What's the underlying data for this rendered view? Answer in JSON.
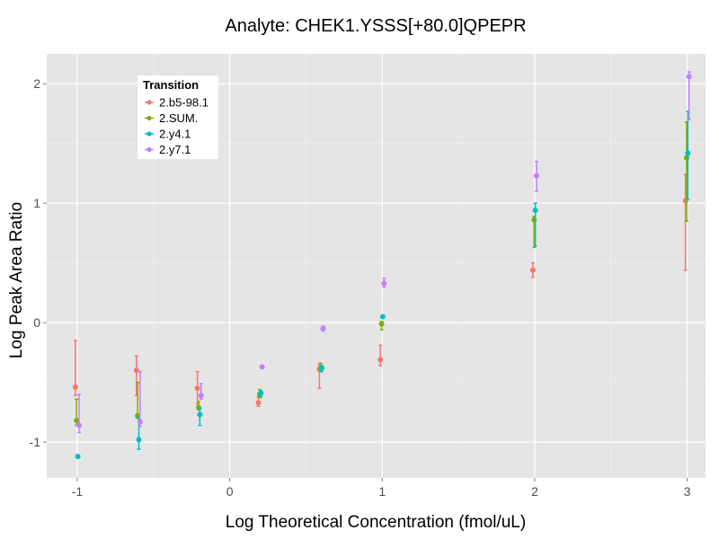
{
  "chart_data": {
    "type": "scatter",
    "title": "Analyte: CHEK1.YSSS[+80.0]QPEPR",
    "xlabel": "Log Theoretical Concentration (fmol/uL)",
    "ylabel": "Log Peak Area Ratio",
    "xlim": [
      -1.2,
      3.12
    ],
    "ylim": [
      -1.3,
      2.25
    ],
    "x_ticks": [
      -1,
      0,
      1,
      2,
      3
    ],
    "y_ticks": [
      -1,
      0,
      1,
      2
    ],
    "x_tick_labels": [
      "-1",
      "0",
      "1",
      "2",
      "3"
    ],
    "y_tick_labels": [
      "-1",
      "0",
      "1",
      "2"
    ],
    "grid": true,
    "legend": {
      "title": "Transition",
      "position": "top-left"
    },
    "series": [
      {
        "name": "2.b5-98.1",
        "color": "#F8766D",
        "offset": -0.012,
        "points": [
          {
            "x": -1.0,
            "y": -0.54,
            "lo": -0.61,
            "hi": -0.15
          },
          {
            "x": -0.6,
            "y": -0.4,
            "lo": -0.61,
            "hi": -0.28
          },
          {
            "x": -0.2,
            "y": -0.55,
            "lo": -0.68,
            "hi": -0.41
          },
          {
            "x": 0.2,
            "y": -0.67,
            "lo": -0.7,
            "hi": -0.62
          },
          {
            "x": 0.6,
            "y": -0.39,
            "lo": -0.55,
            "hi": -0.35
          },
          {
            "x": 1.0,
            "y": -0.31,
            "lo": -0.36,
            "hi": -0.19
          },
          {
            "x": 2.0,
            "y": 0.44,
            "lo": 0.38,
            "hi": 0.5
          },
          {
            "x": 3.0,
            "y": 1.02,
            "lo": 0.44,
            "hi": 1.24
          }
        ]
      },
      {
        "name": "2.SUM.",
        "color": "#7CAE00",
        "offset": -0.004,
        "points": [
          {
            "x": -1.0,
            "y": -0.82,
            "lo": -0.86,
            "hi": -0.64
          },
          {
            "x": -0.6,
            "y": -0.78,
            "lo": -0.8,
            "hi": -0.5
          },
          {
            "x": -0.2,
            "y": -0.71,
            "lo": -0.73,
            "hi": -0.66
          },
          {
            "x": 0.2,
            "y": -0.6,
            "lo": -0.63,
            "hi": -0.56
          },
          {
            "x": 0.6,
            "y": -0.38,
            "lo": -0.41,
            "hi": -0.34
          },
          {
            "x": 1.0,
            "y": -0.01,
            "lo": -0.06,
            "hi": 0.01
          },
          {
            "x": 2.0,
            "y": 0.86,
            "lo": 0.63,
            "hi": 0.89
          },
          {
            "x": 3.0,
            "y": 1.38,
            "lo": 0.85,
            "hi": 1.68
          }
        ]
      },
      {
        "name": "2.y4.1",
        "color": "#00BFC4",
        "offset": 0.004,
        "points": [
          {
            "x": -1.0,
            "y": -1.12,
            "lo": -1.13,
            "hi": -1.11
          },
          {
            "x": -0.6,
            "y": -0.98,
            "lo": -1.06,
            "hi": -0.79
          },
          {
            "x": -0.2,
            "y": -0.77,
            "lo": -0.86,
            "hi": -0.72
          },
          {
            "x": 0.2,
            "y": -0.59,
            "lo": -0.62,
            "hi": -0.57
          },
          {
            "x": 0.6,
            "y": -0.38,
            "lo": -0.41,
            "hi": -0.36
          },
          {
            "x": 1.0,
            "y": 0.05,
            "lo": 0.04,
            "hi": 0.06
          },
          {
            "x": 2.0,
            "y": 0.94,
            "lo": 0.64,
            "hi": 1.0
          },
          {
            "x": 3.0,
            "y": 1.42,
            "lo": 1.03,
            "hi": 1.77
          }
        ]
      },
      {
        "name": "2.y7.1",
        "color": "#C77CFF",
        "offset": 0.012,
        "points": [
          {
            "x": -1.0,
            "y": -0.86,
            "lo": -0.92,
            "hi": -0.6
          },
          {
            "x": -0.6,
            "y": -0.83,
            "lo": -0.87,
            "hi": -0.41
          },
          {
            "x": -0.2,
            "y": -0.61,
            "lo": -0.64,
            "hi": -0.51
          },
          {
            "x": 0.2,
            "y": -0.37,
            "lo": -0.38,
            "hi": -0.36
          },
          {
            "x": 0.6,
            "y": -0.05,
            "lo": -0.07,
            "hi": -0.03
          },
          {
            "x": 1.0,
            "y": 0.33,
            "lo": 0.3,
            "hi": 0.37
          },
          {
            "x": 2.0,
            "y": 1.23,
            "lo": 1.1,
            "hi": 1.35
          },
          {
            "x": 3.0,
            "y": 2.06,
            "lo": 1.7,
            "hi": 2.1
          }
        ]
      }
    ]
  }
}
